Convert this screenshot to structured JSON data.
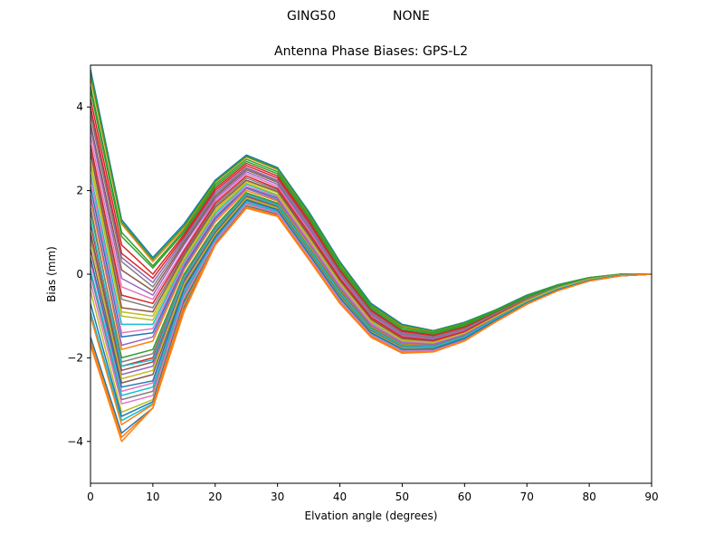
{
  "suptitle": {
    "left": "GING50",
    "right": "NONE"
  },
  "chart_data": {
    "type": "line",
    "title": "Antenna Phase Biases: GPS-L2",
    "xlabel": "Elvation angle (degrees)",
    "ylabel": "Bias (mm)",
    "xlim": [
      0,
      90
    ],
    "ylim": [
      -5,
      5
    ],
    "xticks": [
      0,
      10,
      20,
      30,
      40,
      50,
      60,
      70,
      80,
      90
    ],
    "yticks": [
      -4,
      -2,
      0,
      2,
      4
    ],
    "grid": false,
    "legend": "none",
    "x": [
      0,
      5,
      10,
      15,
      20,
      25,
      30,
      35,
      40,
      45,
      50,
      55,
      60,
      65,
      70,
      75,
      80,
      85,
      90
    ],
    "colors": [
      "#1f77b4",
      "#ff7f0e",
      "#2ca02c",
      "#d62728",
      "#9467bd",
      "#8c564b",
      "#e377c2",
      "#7f7f7f",
      "#bcbd22",
      "#17becf"
    ],
    "series": [
      {
        "values": [
          4.9,
          1.3,
          0.4,
          1.2,
          2.25,
          2.85,
          2.55,
          1.5,
          0.3,
          -0.7,
          -1.2,
          -1.35,
          -1.15,
          -0.85,
          -0.5,
          -0.25,
          -0.08,
          0.0,
          0.0
        ]
      },
      {
        "values": [
          4.7,
          1.2,
          0.3,
          1.1,
          2.2,
          2.8,
          2.5,
          1.45,
          0.25,
          -0.75,
          -1.25,
          -1.38,
          -1.18,
          -0.87,
          -0.52,
          -0.26,
          -0.08,
          0.0,
          0.0
        ]
      },
      {
        "values": [
          4.5,
          1.0,
          0.2,
          1.05,
          2.15,
          2.75,
          2.45,
          1.4,
          0.2,
          -0.78,
          -1.28,
          -1.4,
          -1.2,
          -0.88,
          -0.53,
          -0.27,
          -0.09,
          0.0,
          0.0
        ]
      },
      {
        "values": [
          4.2,
          0.7,
          0.0,
          0.95,
          2.05,
          2.65,
          2.35,
          1.3,
          0.12,
          -0.85,
          -1.35,
          -1.45,
          -1.25,
          -0.9,
          -0.55,
          -0.28,
          -0.1,
          -0.01,
          0.0
        ]
      },
      {
        "values": [
          3.9,
          0.4,
          -0.2,
          0.85,
          1.95,
          2.55,
          2.25,
          1.2,
          0.05,
          -0.9,
          -1.4,
          -1.5,
          -1.3,
          -0.93,
          -0.57,
          -0.29,
          -0.1,
          -0.01,
          0.0
        ]
      },
      {
        "values": [
          3.6,
          0.1,
          -0.4,
          0.75,
          1.85,
          2.5,
          2.2,
          1.12,
          0.0,
          -0.95,
          -1.43,
          -1.52,
          -1.32,
          -0.95,
          -0.58,
          -0.3,
          -0.11,
          -0.01,
          0.0
        ]
      },
      {
        "values": [
          3.3,
          -0.3,
          -0.6,
          0.6,
          1.75,
          2.4,
          2.1,
          1.05,
          -0.05,
          -1.0,
          -1.48,
          -1.56,
          -1.35,
          -0.97,
          -0.6,
          -0.31,
          -0.11,
          -0.02,
          0.0
        ]
      },
      {
        "values": [
          3.0,
          -0.6,
          -0.8,
          0.5,
          1.65,
          2.3,
          2.02,
          0.97,
          -0.12,
          -1.05,
          -1.52,
          -1.6,
          -1.38,
          -0.99,
          -0.61,
          -0.32,
          -0.12,
          -0.02,
          0.0
        ]
      },
      {
        "values": [
          2.7,
          -0.9,
          -1.0,
          0.4,
          1.55,
          2.22,
          1.95,
          0.9,
          -0.18,
          -1.1,
          -1.56,
          -1.62,
          -1.4,
          -1.0,
          -0.62,
          -0.33,
          -0.12,
          -0.02,
          0.0
        ]
      },
      {
        "values": [
          2.4,
          -1.2,
          -1.2,
          0.3,
          1.45,
          2.15,
          1.88,
          0.84,
          -0.24,
          -1.15,
          -1.6,
          -1.65,
          -1.42,
          -1.02,
          -0.63,
          -0.33,
          -0.13,
          -0.02,
          0.0
        ]
      },
      {
        "values": [
          2.1,
          -1.5,
          -1.4,
          0.2,
          1.35,
          2.08,
          1.82,
          0.78,
          -0.3,
          -1.2,
          -1.63,
          -1.67,
          -1.44,
          -1.03,
          -0.64,
          -0.34,
          -0.13,
          -0.02,
          0.0
        ]
      },
      {
        "values": [
          1.8,
          -1.8,
          -1.6,
          0.1,
          1.25,
          2.0,
          1.75,
          0.72,
          -0.36,
          -1.25,
          -1.66,
          -1.7,
          -1.46,
          -1.05,
          -0.65,
          -0.35,
          -0.14,
          -0.03,
          0.0
        ]
      },
      {
        "values": [
          1.5,
          -2.0,
          -1.8,
          0.0,
          1.15,
          1.95,
          1.7,
          0.66,
          -0.4,
          -1.28,
          -1.69,
          -1.72,
          -1.48,
          -1.06,
          -0.66,
          -0.35,
          -0.14,
          -0.03,
          0.0
        ]
      },
      {
        "values": [
          1.2,
          -2.2,
          -2.0,
          -0.1,
          1.05,
          1.9,
          1.64,
          0.6,
          -0.45,
          -1.32,
          -1.72,
          -1.74,
          -1.5,
          -1.07,
          -0.67,
          -0.36,
          -0.14,
          -0.03,
          0.0
        ]
      },
      {
        "values": [
          0.9,
          -2.4,
          -2.2,
          -0.2,
          0.98,
          1.85,
          1.6,
          0.56,
          -0.5,
          -1.35,
          -1.75,
          -1.76,
          -1.52,
          -1.08,
          -0.68,
          -0.36,
          -0.15,
          -0.03,
          0.0
        ]
      },
      {
        "values": [
          0.6,
          -2.6,
          -2.4,
          -0.3,
          0.92,
          1.8,
          1.56,
          0.52,
          -0.54,
          -1.38,
          -1.78,
          -1.78,
          -1.53,
          -1.09,
          -0.68,
          -0.37,
          -0.15,
          -0.03,
          0.0
        ]
      },
      {
        "values": [
          0.3,
          -2.8,
          -2.6,
          -0.4,
          0.86,
          1.75,
          1.52,
          0.48,
          -0.58,
          -1.41,
          -1.8,
          -1.8,
          -1.54,
          -1.1,
          -0.69,
          -0.37,
          -0.15,
          -0.03,
          0.0
        ]
      },
      {
        "values": [
          0.0,
          -3.0,
          -2.8,
          -0.5,
          0.8,
          1.7,
          1.48,
          0.44,
          -0.62,
          -1.44,
          -1.83,
          -1.82,
          -1.56,
          -1.11,
          -0.7,
          -0.38,
          -0.16,
          -0.04,
          0.0
        ]
      },
      {
        "values": [
          -0.4,
          -3.3,
          -3.0,
          -0.6,
          0.75,
          1.65,
          1.44,
          0.41,
          -0.65,
          -1.46,
          -1.85,
          -1.83,
          -1.57,
          -1.12,
          -0.7,
          -0.38,
          -0.16,
          -0.04,
          0.0
        ]
      },
      {
        "values": [
          -0.9,
          -3.5,
          -3.1,
          -0.7,
          0.72,
          1.62,
          1.42,
          0.39,
          -0.67,
          -1.48,
          -1.86,
          -1.84,
          -1.58,
          -1.13,
          -0.71,
          -0.38,
          -0.16,
          -0.04,
          0.0
        ]
      },
      {
        "values": [
          -1.5,
          -3.8,
          -3.2,
          -0.8,
          0.7,
          1.6,
          1.4,
          0.37,
          -0.69,
          -1.5,
          -1.88,
          -1.85,
          -1.59,
          -1.13,
          -0.71,
          -0.39,
          -0.16,
          -0.04,
          0.0
        ]
      },
      {
        "values": [
          -1.7,
          -4.0,
          -3.2,
          -0.9,
          0.7,
          1.58,
          1.38,
          0.36,
          -0.7,
          -1.51,
          -1.89,
          -1.86,
          -1.6,
          -1.14,
          -0.72,
          -0.39,
          -0.16,
          -0.04,
          0.0
        ]
      },
      {
        "values": [
          4.8,
          1.25,
          0.35,
          1.15,
          2.22,
          2.82,
          2.52,
          1.47,
          0.27,
          -0.73,
          -1.22,
          -1.36,
          -1.16,
          -0.86,
          -0.51,
          -0.25,
          -0.08,
          0.0,
          0.0
        ]
      },
      {
        "values": [
          4.0,
          0.5,
          -0.1,
          0.9,
          2.0,
          2.6,
          2.3,
          1.25,
          0.08,
          -0.87,
          -1.37,
          -1.47,
          -1.27,
          -0.91,
          -0.56,
          -0.28,
          -0.1,
          -0.01,
          0.0
        ]
      },
      {
        "values": [
          3.5,
          -0.1,
          -0.5,
          0.7,
          1.8,
          2.45,
          2.15,
          1.1,
          -0.02,
          -0.97,
          -1.45,
          -1.54,
          -1.33,
          -0.96,
          -0.59,
          -0.3,
          -0.11,
          -0.01,
          0.0
        ]
      },
      {
        "values": [
          2.9,
          -0.8,
          -0.9,
          0.45,
          1.6,
          2.25,
          1.98,
          0.93,
          -0.15,
          -1.08,
          -1.54,
          -1.61,
          -1.39,
          -1.0,
          -0.62,
          -0.32,
          -0.12,
          -0.02,
          0.0
        ]
      },
      {
        "values": [
          2.3,
          -1.4,
          -1.3,
          0.25,
          1.4,
          2.1,
          1.85,
          0.8,
          -0.27,
          -1.18,
          -1.62,
          -1.66,
          -1.43,
          -1.03,
          -0.64,
          -0.34,
          -0.13,
          -0.02,
          0.0
        ]
      },
      {
        "values": [
          1.6,
          -2.1,
          -1.9,
          -0.05,
          1.1,
          1.92,
          1.67,
          0.63,
          -0.43,
          -1.3,
          -1.7,
          -1.73,
          -1.49,
          -1.07,
          -0.67,
          -0.36,
          -0.14,
          -0.03,
          0.0
        ]
      },
      {
        "values": [
          0.8,
          -2.5,
          -2.3,
          -0.25,
          0.95,
          1.82,
          1.58,
          0.54,
          -0.52,
          -1.37,
          -1.76,
          -1.77,
          -1.52,
          -1.09,
          -0.68,
          -0.37,
          -0.15,
          -0.03,
          0.0
        ]
      },
      {
        "values": [
          0.1,
          -2.9,
          -2.7,
          -0.45,
          0.82,
          1.72,
          1.5,
          0.46,
          -0.6,
          -1.43,
          -1.82,
          -1.81,
          -1.55,
          -1.1,
          -0.69,
          -0.37,
          -0.15,
          -0.03,
          0.0
        ]
      },
      {
        "values": [
          -0.7,
          -3.4,
          -3.05,
          -0.65,
          0.73,
          1.63,
          1.43,
          0.4,
          -0.66,
          -1.47,
          -1.86,
          -1.84,
          -1.58,
          -1.12,
          -0.71,
          -0.38,
          -0.16,
          -0.04,
          0.0
        ]
      },
      {
        "values": [
          -1.6,
          -3.9,
          -3.2,
          -0.85,
          0.7,
          1.59,
          1.39,
          0.36,
          -0.7,
          -1.5,
          -1.88,
          -1.85,
          -1.59,
          -1.13,
          -0.71,
          -0.39,
          -0.16,
          -0.04,
          0.0
        ]
      },
      {
        "values": [
          4.4,
          0.9,
          0.15,
          1.0,
          2.1,
          2.7,
          2.4,
          1.35,
          0.15,
          -0.82,
          -1.32,
          -1.43,
          -1.23,
          -0.89,
          -0.54,
          -0.27,
          -0.09,
          0.0,
          0.0
        ]
      },
      {
        "values": [
          3.1,
          -0.5,
          -0.7,
          0.55,
          1.7,
          2.35,
          2.05,
          1.0,
          -0.1,
          -1.03,
          -1.5,
          -1.58,
          -1.37,
          -0.98,
          -0.6,
          -0.31,
          -0.12,
          -0.02,
          0.0
        ]
      },
      {
        "values": [
          1.9,
          -1.7,
          -1.5,
          0.15,
          1.3,
          2.05,
          1.78,
          0.75,
          -0.33,
          -1.22,
          -1.64,
          -1.68,
          -1.45,
          -1.04,
          -0.65,
          -0.34,
          -0.13,
          -0.02,
          0.0
        ]
      },
      {
        "values": [
          1.0,
          -2.3,
          -2.1,
          -0.15,
          1.0,
          1.87,
          1.62,
          0.58,
          -0.48,
          -1.34,
          -1.73,
          -1.75,
          -1.51,
          -1.08,
          -0.67,
          -0.36,
          -0.14,
          -0.03,
          0.0
        ]
      },
      {
        "values": [
          -0.2,
          -3.1,
          -2.9,
          -0.55,
          0.78,
          1.68,
          1.46,
          0.43,
          -0.63,
          -1.45,
          -1.84,
          -1.82,
          -1.56,
          -1.11,
          -0.7,
          -0.38,
          -0.16,
          -0.04,
          0.0
        ]
      },
      {
        "values": [
          3.8,
          0.3,
          -0.3,
          0.8,
          1.9,
          2.52,
          2.22,
          1.15,
          0.02,
          -0.93,
          -1.42,
          -1.51,
          -1.31,
          -0.94,
          -0.58,
          -0.3,
          -0.11,
          -0.01,
          0.0
        ]
      },
      {
        "values": [
          2.6,
          -1.0,
          -1.1,
          0.35,
          1.5,
          2.18,
          1.9,
          0.86,
          -0.21,
          -1.13,
          -1.58,
          -1.63,
          -1.41,
          -1.01,
          -0.63,
          -0.33,
          -0.12,
          -0.02,
          0.0
        ]
      },
      {
        "values": [
          1.3,
          -2.2,
          -2.05,
          -0.1,
          1.05,
          1.9,
          1.65,
          0.61,
          -0.45,
          -1.32,
          -1.71,
          -1.74,
          -1.5,
          -1.07,
          -0.67,
          -0.36,
          -0.14,
          -0.03,
          0.0
        ]
      },
      {
        "values": [
          0.4,
          -2.7,
          -2.55,
          -0.35,
          0.88,
          1.77,
          1.54,
          0.5,
          -0.56,
          -1.4,
          -1.79,
          -1.79,
          -1.54,
          -1.1,
          -0.69,
          -0.37,
          -0.15,
          -0.03,
          0.0
        ]
      },
      {
        "values": [
          -1.0,
          -3.6,
          -3.12,
          -0.72,
          0.71,
          1.61,
          1.41,
          0.38,
          -0.68,
          -1.49,
          -1.87,
          -1.85,
          -1.59,
          -1.13,
          -0.71,
          -0.39,
          -0.16,
          -0.04,
          0.0
        ]
      }
    ]
  }
}
